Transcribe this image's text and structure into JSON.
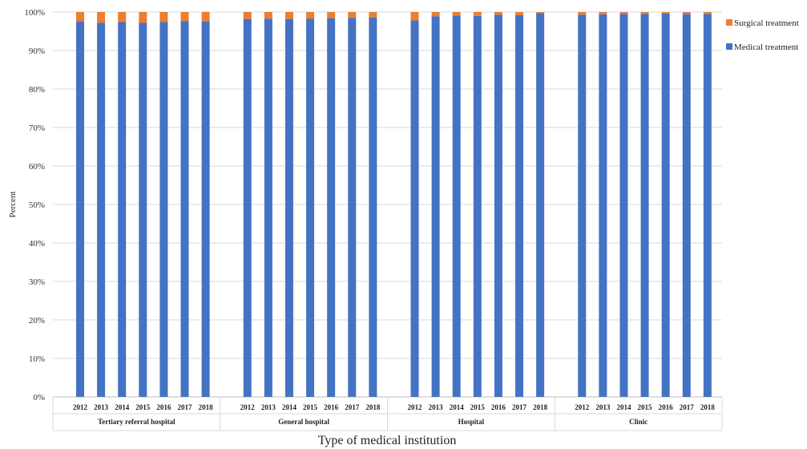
{
  "chart_data": {
    "type": "bar",
    "stacked": true,
    "normalized": true,
    "xlabel": "Type of medical institution",
    "ylabel": "Percent",
    "ylim": [
      0,
      100
    ],
    "y_ticks": [
      "0%",
      "10%",
      "20%",
      "30%",
      "40%",
      "50%",
      "60%",
      "70%",
      "80%",
      "90%",
      "100%"
    ],
    "grid": true,
    "legend": "right",
    "groups": [
      {
        "name": "Tertiary referral hospital",
        "years": [
          "2012",
          "2013",
          "2014",
          "2015",
          "2016",
          "2017",
          "2018"
        ],
        "medical": [
          97.5,
          97.2,
          97.4,
          97.2,
          97.4,
          97.6,
          97.5
        ],
        "surgical": [
          2.5,
          2.8,
          2.6,
          2.8,
          2.6,
          2.4,
          2.5
        ]
      },
      {
        "name": "General hospital",
        "years": [
          "2012",
          "2013",
          "2014",
          "2015",
          "2016",
          "2017",
          "2018"
        ],
        "medical": [
          98.2,
          98.3,
          98.2,
          98.3,
          98.4,
          98.5,
          98.6
        ],
        "surgical": [
          1.8,
          1.7,
          1.8,
          1.7,
          1.6,
          1.5,
          1.4
        ]
      },
      {
        "name": "Hospital",
        "years": [
          "2012",
          "2013",
          "2014",
          "2015",
          "2016",
          "2017",
          "2018"
        ],
        "medical": [
          97.8,
          98.9,
          99.1,
          99.0,
          99.3,
          99.2,
          99.7
        ],
        "surgical": [
          2.2,
          1.1,
          0.9,
          1.0,
          0.7,
          0.8,
          0.3
        ]
      },
      {
        "name": "Clinic",
        "years": [
          "2012",
          "2013",
          "2014",
          "2015",
          "2016",
          "2017",
          "2018"
        ],
        "medical": [
          99.3,
          99.4,
          99.5,
          99.5,
          99.6,
          99.5,
          99.5
        ],
        "surgical": [
          0.7,
          0.6,
          0.5,
          0.5,
          0.4,
          0.5,
          0.5
        ]
      }
    ],
    "series": [
      {
        "name": "Surgical treatment",
        "key": "surgical",
        "color": "#ED7D31"
      },
      {
        "name": "Medical treatment",
        "key": "medical",
        "color": "#4472C4"
      }
    ]
  }
}
